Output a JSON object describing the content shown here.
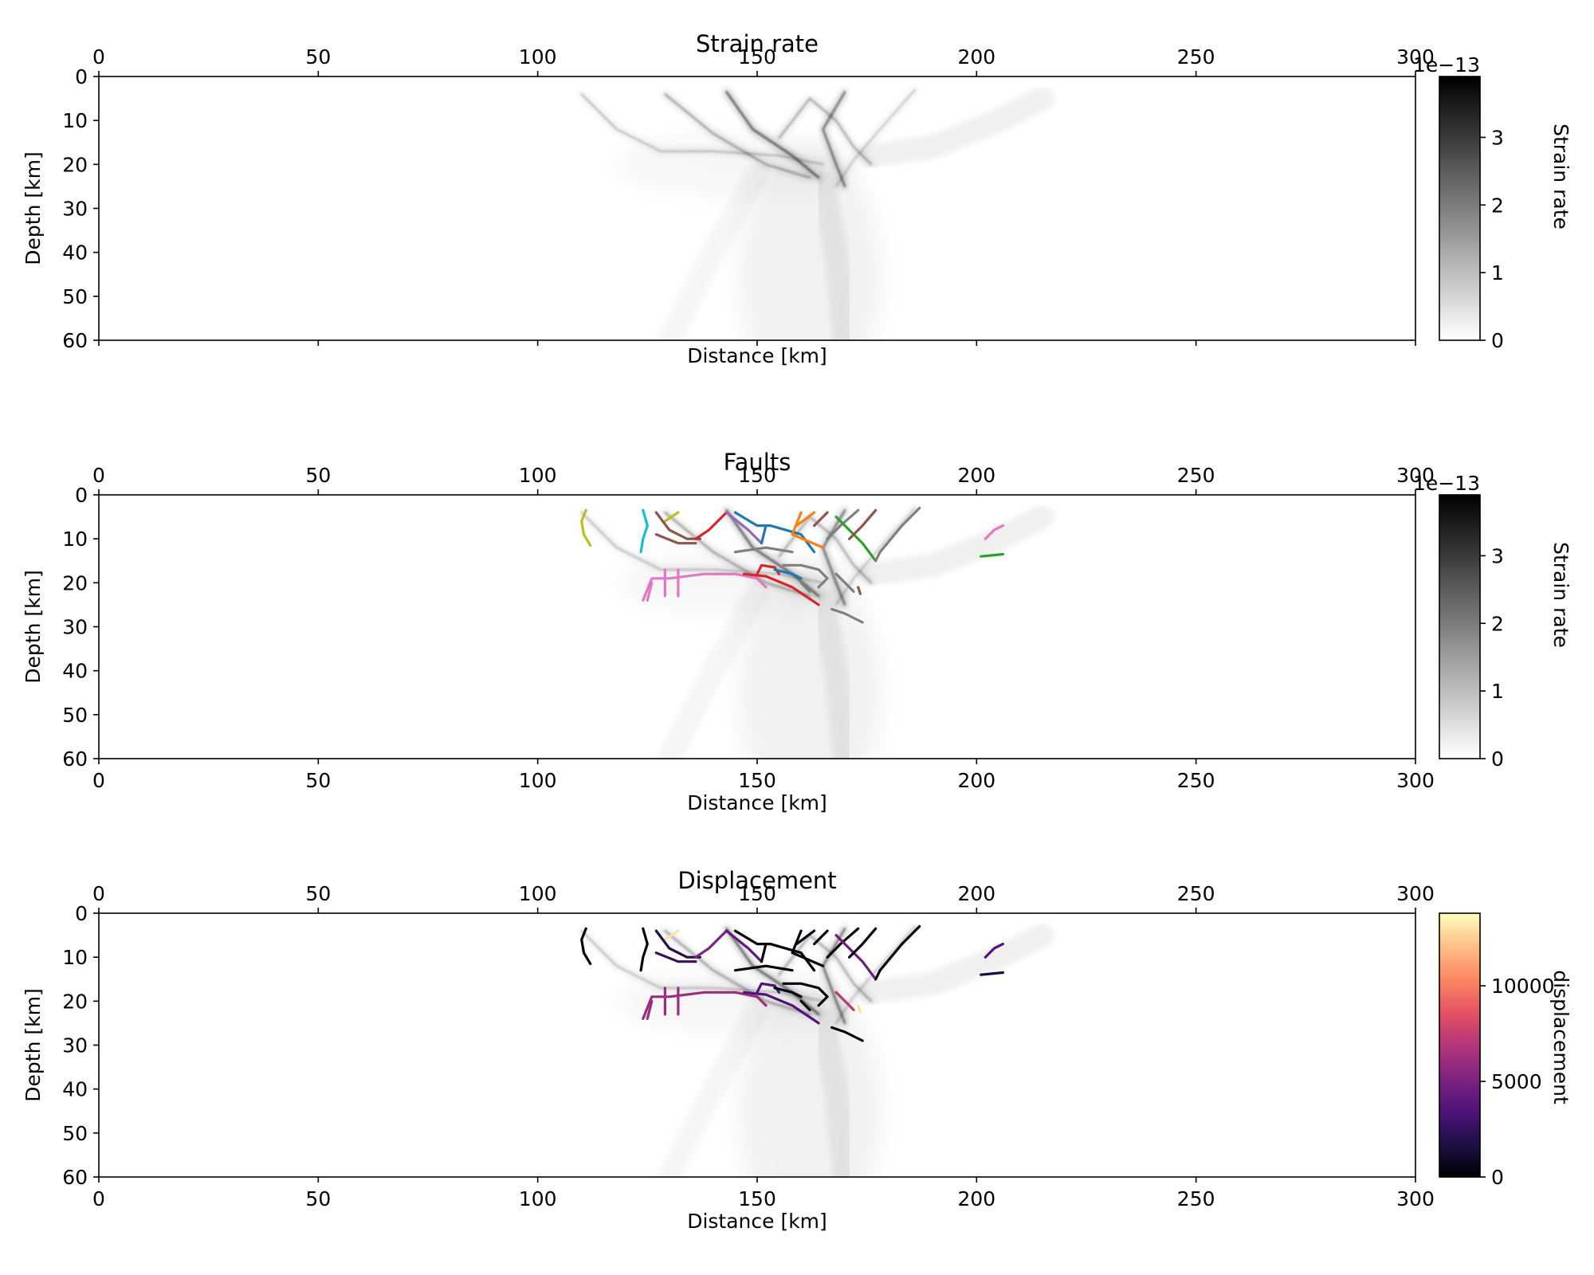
{
  "chart_data": [
    {
      "type": "heatmap",
      "title": "Strain rate",
      "xlabel": "Distance [km]",
      "ylabel": "Depth [km]",
      "xlim": [
        0,
        300
      ],
      "ylim": [
        60,
        0
      ],
      "xticks": [
        0,
        50,
        100,
        150,
        200,
        250,
        300
      ],
      "yticks": [
        0,
        10,
        20,
        30,
        40,
        50,
        60
      ],
      "colorbar": {
        "label": "Strain rate",
        "ticks": [
          0,
          1,
          2,
          3
        ],
        "offset_text": "1e−13",
        "colormap": "grey-white-to-black",
        "range": [
          0,
          3.9
        ]
      },
      "shear_bands": [
        {
          "points": [
            [
              143,
              3.5
            ],
            [
              149,
              12
            ],
            [
              158,
              18
            ],
            [
              164,
              23
            ]
          ],
          "intensity": 0.85
        },
        {
          "points": [
            [
              129,
              4
            ],
            [
              140,
              13
            ],
            [
              152,
              20
            ],
            [
              162,
              23
            ]
          ],
          "intensity": 0.45
        },
        {
          "points": [
            [
              170,
              3.5
            ],
            [
              165,
              12
            ],
            [
              168,
              20
            ],
            [
              170,
              25
            ]
          ],
          "intensity": 0.75
        },
        {
          "points": [
            [
              155,
              14
            ],
            [
              162,
              5
            ],
            [
              168,
              10
            ],
            [
              172,
              16
            ],
            [
              176,
              20
            ]
          ],
          "intensity": 0.4
        },
        {
          "points": [
            [
              110,
              4
            ],
            [
              118,
              12
            ],
            [
              128,
              17
            ],
            [
              140,
              17
            ],
            [
              155,
              18
            ],
            [
              165,
              20
            ]
          ],
          "intensity": 0.3
        },
        {
          "points": [
            [
              186,
              3
            ],
            [
              178,
              12
            ],
            [
              172,
              19
            ],
            [
              168,
              25
            ]
          ],
          "intensity": 0.25
        },
        {
          "points": [
            [
              165,
              24
            ],
            [
              168,
              40
            ],
            [
              170,
              60
            ]
          ],
          "intensity": 0.12
        },
        {
          "points": [
            [
              150,
              22
            ],
            [
              140,
              40
            ],
            [
              130,
              60
            ]
          ],
          "intensity": 0.07
        },
        {
          "points": [
            [
              176,
              18
            ],
            [
              190,
              16
            ],
            [
              205,
              10
            ],
            [
              215,
              5
            ]
          ],
          "intensity": 0.12
        }
      ]
    },
    {
      "type": "heatmap",
      "title": "Faults",
      "xlabel": "Distance [km]",
      "ylabel": "Depth [km]",
      "xlim": [
        0,
        300
      ],
      "ylim": [
        60,
        0
      ],
      "xticks": [
        0,
        50,
        100,
        150,
        200,
        250,
        300
      ],
      "yticks": [
        0,
        10,
        20,
        30,
        40,
        50,
        60
      ],
      "colorbar": {
        "label": "Strain rate",
        "ticks": [
          0,
          1,
          2,
          3
        ],
        "offset_text": "1e−13",
        "colormap": "grey-white-to-black",
        "range": [
          0,
          3.9
        ]
      },
      "faults": [
        {
          "color": "#bcbd22",
          "displacement": 100,
          "points": [
            [
              111,
              3.5
            ],
            [
              110,
              6
            ],
            [
              110.5,
              9
            ],
            [
              112,
              11.5
            ]
          ]
        },
        {
          "color": "#17becf",
          "displacement": 300,
          "points": [
            [
              124,
              3.5
            ],
            [
              125,
              7
            ],
            [
              124,
              10
            ],
            [
              123.5,
              13
            ]
          ]
        },
        {
          "color": "#bcbd22",
          "displacement": 13000,
          "points": [
            [
              129,
              6
            ],
            [
              132,
              4
            ]
          ]
        },
        {
          "color": "#8c564b",
          "displacement": 2000,
          "points": [
            [
              127,
              4
            ],
            [
              130,
              8
            ],
            [
              134,
              10
            ],
            [
              137,
              10
            ]
          ]
        },
        {
          "color": "#8c564b",
          "displacement": 2500,
          "points": [
            [
              127,
              9
            ],
            [
              132,
              11
            ],
            [
              136,
              11
            ]
          ]
        },
        {
          "color": "#d62728",
          "displacement": 5000,
          "points": [
            [
              136,
              10
            ],
            [
              139,
              8
            ],
            [
              143,
              4
            ]
          ]
        },
        {
          "color": "#9467bd",
          "displacement": 4000,
          "points": [
            [
              143,
              4
            ],
            [
              148,
              8
            ],
            [
              151,
              11
            ]
          ]
        },
        {
          "color": "#1f77b4",
          "displacement": 200,
          "points": [
            [
              145,
              4
            ],
            [
              150,
              7
            ],
            [
              153,
              7
            ],
            [
              160,
              9
            ],
            [
              163,
              13
            ]
          ]
        },
        {
          "color": "#1f77b4",
          "displacement": 300,
          "points": [
            [
              152,
              7
            ],
            [
              151,
              11
            ]
          ]
        },
        {
          "color": "#ff7f0e",
          "displacement": 200,
          "points": [
            [
              160,
              4
            ],
            [
              158,
              9
            ],
            [
              165,
              12
            ]
          ]
        },
        {
          "color": "#ff7f0e",
          "displacement": 200,
          "points": [
            [
              163,
              4
            ],
            [
              159,
              7
            ]
          ]
        },
        {
          "color": "#8c564b",
          "displacement": 300,
          "points": [
            [
              166,
              4
            ],
            [
              163,
              7
            ]
          ]
        },
        {
          "color": "#7f7f7f",
          "displacement": 100,
          "points": [
            [
              173,
              3.5
            ],
            [
              169,
              7
            ],
            [
              166,
              10
            ]
          ]
        },
        {
          "color": "#2ca02c",
          "displacement": 4500,
          "points": [
            [
              168,
              5
            ],
            [
              174,
              11
            ],
            [
              177,
              15
            ]
          ]
        },
        {
          "color": "#8c564b",
          "displacement": 250,
          "points": [
            [
              177,
              3.5
            ],
            [
              174,
              7
            ],
            [
              171,
              10
            ]
          ]
        },
        {
          "color": "#7f7f7f",
          "displacement": 150,
          "points": [
            [
              187,
              3
            ],
            [
              183,
              7
            ],
            [
              178,
              13
            ],
            [
              177,
              15
            ]
          ]
        },
        {
          "color": "#7f7f7f",
          "displacement": 250,
          "points": [
            [
              145,
              13
            ],
            [
              152,
              12
            ],
            [
              158,
              13
            ]
          ]
        },
        {
          "color": "#e377c2",
          "displacement": 6000,
          "points": [
            [
              124,
              24
            ],
            [
              126,
              19
            ],
            [
              130,
              19
            ],
            [
              138,
              18
            ],
            [
              145,
              18
            ],
            [
              150,
              19
            ],
            [
              152,
              21
            ]
          ]
        },
        {
          "color": "#e377c2",
          "displacement": 6000,
          "points": [
            [
              126,
              20
            ],
            [
              125,
              24
            ]
          ]
        },
        {
          "color": "#e377c2",
          "displacement": 6000,
          "points": [
            [
              129,
              17
            ],
            [
              129,
              23
            ]
          ]
        },
        {
          "color": "#e377c2",
          "displacement": 6000,
          "points": [
            [
              132,
              17
            ],
            [
              132,
              23
            ]
          ]
        },
        {
          "color": "#d62728",
          "displacement": 3500,
          "points": [
            [
              147,
              18
            ],
            [
              152,
              18.5
            ],
            [
              158,
              21
            ],
            [
              164,
              25
            ]
          ]
        },
        {
          "color": "#d62728",
          "displacement": 3500,
          "points": [
            [
              150,
              18
            ],
            [
              151,
              16
            ],
            [
              154,
              16.5
            ],
            [
              155,
              18
            ]
          ]
        },
        {
          "color": "#1f77b4",
          "displacement": 400,
          "points": [
            [
              154,
              17
            ],
            [
              158,
              18
            ],
            [
              160,
              19
            ]
          ]
        },
        {
          "color": "#7f7f7f",
          "displacement": 200,
          "points": [
            [
              156,
              16
            ],
            [
              160,
              16
            ],
            [
              164,
              17
            ],
            [
              166,
              19
            ],
            [
              164,
              21
            ]
          ]
        },
        {
          "color": "#7f7f7f",
          "displacement": 200,
          "points": [
            [
              160,
              20
            ],
            [
              162,
              22
            ]
          ]
        },
        {
          "color": "#7f7f7f",
          "displacement": 7000,
          "points": [
            [
              168,
              18
            ],
            [
              170,
              20
            ],
            [
              172,
              22
            ]
          ]
        },
        {
          "color": "#8c564b",
          "displacement": 13000,
          "points": [
            [
              173,
              21
            ],
            [
              173.5,
              22.5
            ]
          ]
        },
        {
          "color": "#7f7f7f",
          "displacement": 200,
          "points": [
            [
              167,
              26
            ],
            [
              170,
              27
            ],
            [
              174,
              29
            ]
          ]
        },
        {
          "color": "#e377c2",
          "displacement": 3500,
          "points": [
            [
              202,
              10
            ],
            [
              204,
              8
            ],
            [
              206,
              7
            ]
          ]
        },
        {
          "color": "#2ca02c",
          "displacement": 1500,
          "points": [
            [
              201,
              14
            ],
            [
              203,
              13.8
            ],
            [
              206,
              13.5
            ]
          ]
        }
      ]
    },
    {
      "type": "heatmap",
      "title": "Displacement",
      "xlabel": "Distance [km]",
      "ylabel": "Depth [km]",
      "xlim": [
        0,
        300
      ],
      "ylim": [
        60,
        0
      ],
      "xticks": [
        0,
        50,
        100,
        150,
        200,
        250,
        300
      ],
      "yticks": [
        0,
        10,
        20,
        30,
        40,
        50,
        60
      ],
      "colorbar": {
        "label": "displacement",
        "ticks": [
          0,
          5000,
          10000
        ],
        "colormap": "magma",
        "range": [
          0,
          13800
        ]
      }
    }
  ]
}
